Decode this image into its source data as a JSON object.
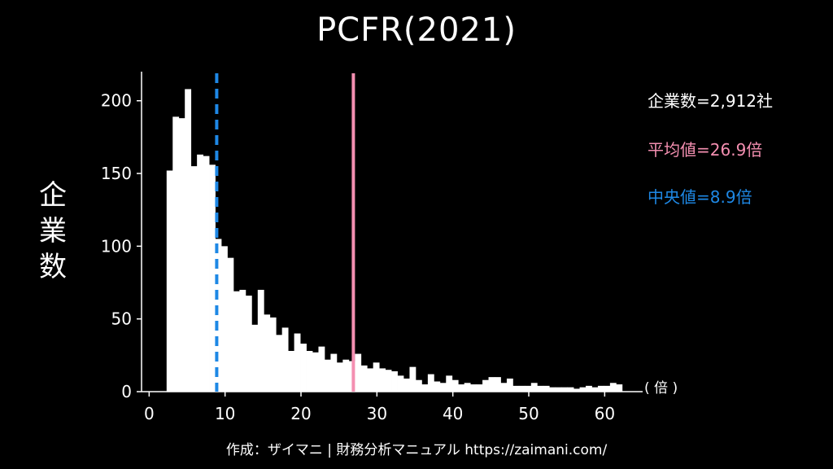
{
  "chart_data": {
    "type": "bar",
    "title": "PCFR(2021)",
    "ylabel": "企業数",
    "xunit": "( 倍 )",
    "xlim": [
      -1,
      65
    ],
    "ylim": [
      0,
      220
    ],
    "xticks": [
      0,
      10,
      20,
      30,
      40,
      50,
      60
    ],
    "yticks": [
      0,
      50,
      100,
      150,
      200
    ],
    "bin_width": 0.8,
    "bin_start": 2.3,
    "values": [
      152,
      189,
      188,
      208,
      155,
      163,
      162,
      156,
      105,
      100,
      92,
      69,
      70,
      66,
      46,
      70,
      53,
      51,
      39,
      44,
      28,
      40,
      33,
      28,
      27,
      31,
      22,
      26,
      20,
      22,
      21,
      26,
      18,
      16,
      20,
      16,
      15,
      14,
      11,
      9,
      17,
      8,
      5,
      12,
      7,
      6,
      11,
      8,
      5,
      6,
      5,
      5,
      8,
      10,
      10,
      6,
      9,
      4,
      4,
      4,
      6,
      4,
      4,
      3,
      3,
      3,
      3,
      2,
      3,
      4,
      3,
      4,
      4,
      6,
      5
    ],
    "lines": [
      {
        "name": "平均値",
        "value": 26.9,
        "color": "#f48fb1",
        "style": "solid"
      },
      {
        "name": "中央値",
        "value": 8.9,
        "color": "#1e88e5",
        "style": "dashed"
      }
    ]
  },
  "stats": {
    "count": "企業数=2,912社",
    "mean": "平均値=26.9倍",
    "median": "中央値=8.9倍"
  },
  "colors": {
    "background": "#000000",
    "bars": "#ffffff",
    "mean": "#f48fb1",
    "median": "#1e88e5"
  },
  "footer": "作成：ザイマニ | 財務分析マニュアル https://zaimani.com/"
}
